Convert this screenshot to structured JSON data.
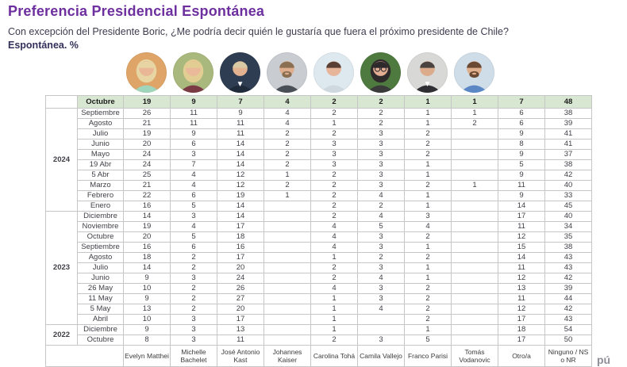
{
  "watermark": "pú",
  "colors": {
    "title_purple": "#6d2f9e",
    "subtitle_bold": "#33305a",
    "header_green": "#d8e7d1",
    "table_border": "#c6c6c6"
  },
  "chart_data": {
    "type": "table",
    "title": "Preferencia Presidencial Espontánea",
    "question": "Con excepción del Presidente Boric, ¿Me podría decir quién le gustaría que fuera el próximo presidente de Chile?",
    "unit_label": "Espontánea. %",
    "columns": [
      "Evelyn Matthei",
      "Michelle Bachelet",
      "José Antonio Kast",
      "Johannes Kaiser",
      "Carolina Tohá",
      "Camila Vallejo",
      "Franco Parisi",
      "Tomás Vodanovic",
      "Otro/a",
      "Ninguno / NS o NR"
    ],
    "header": {
      "label": "Octubre",
      "values": [
        "19",
        "9",
        "7",
        "4",
        "2",
        "2",
        "1",
        "1",
        "7",
        "48"
      ]
    },
    "groups": [
      {
        "year": "2024",
        "rows": [
          {
            "month": "Septiembre",
            "values": [
              "26",
              "11",
              "9",
              "4",
              "2",
              "2",
              "1",
              "1",
              "6",
              "38"
            ]
          },
          {
            "month": "Agosto",
            "values": [
              "21",
              "11",
              "11",
              "4",
              "1",
              "2",
              "1",
              "2",
              "6",
              "39"
            ]
          },
          {
            "month": "Julio",
            "values": [
              "19",
              "9",
              "11",
              "2",
              "2",
              "3",
              "2",
              "",
              "9",
              "41"
            ]
          },
          {
            "month": "Junio",
            "values": [
              "20",
              "6",
              "14",
              "2",
              "3",
              "3",
              "2",
              "",
              "8",
              "41"
            ]
          },
          {
            "month": "Mayo",
            "values": [
              "24",
              "3",
              "14",
              "2",
              "3",
              "3",
              "2",
              "",
              "9",
              "37"
            ]
          },
          {
            "month": "19 Abr",
            "values": [
              "24",
              "7",
              "14",
              "2",
              "3",
              "3",
              "1",
              "",
              "5",
              "38"
            ]
          },
          {
            "month": "5 Abr",
            "values": [
              "25",
              "4",
              "12",
              "1",
              "2",
              "3",
              "1",
              "",
              "9",
              "42"
            ]
          },
          {
            "month": "Marzo",
            "values": [
              "21",
              "4",
              "12",
              "2",
              "2",
              "3",
              "2",
              "1",
              "11",
              "40"
            ]
          },
          {
            "month": "Febrero",
            "values": [
              "22",
              "6",
              "19",
              "1",
              "2",
              "4",
              "1",
              "",
              "9",
              "33"
            ]
          },
          {
            "month": "Enero",
            "values": [
              "16",
              "5",
              "14",
              "",
              "2",
              "2",
              "1",
              "",
              "14",
              "45"
            ]
          }
        ]
      },
      {
        "year": "2023",
        "rows": [
          {
            "month": "Diciembre",
            "values": [
              "14",
              "3",
              "14",
              "",
              "2",
              "4",
              "3",
              "",
              "17",
              "40"
            ]
          },
          {
            "month": "Noviembre",
            "values": [
              "19",
              "4",
              "17",
              "",
              "4",
              "5",
              "4",
              "",
              "11",
              "34"
            ]
          },
          {
            "month": "Octubre",
            "values": [
              "20",
              "5",
              "18",
              "",
              "4",
              "3",
              "2",
              "",
              "12",
              "35"
            ]
          },
          {
            "month": "Septiembre",
            "values": [
              "16",
              "6",
              "16",
              "",
              "4",
              "3",
              "1",
              "",
              "15",
              "38"
            ]
          },
          {
            "month": "Agosto",
            "values": [
              "18",
              "2",
              "17",
              "",
              "1",
              "2",
              "2",
              "",
              "14",
              "43"
            ]
          },
          {
            "month": "Julio",
            "values": [
              "14",
              "2",
              "20",
              "",
              "2",
              "3",
              "1",
              "",
              "11",
              "43"
            ]
          },
          {
            "month": "Junio",
            "values": [
              "9",
              "3",
              "24",
              "",
              "2",
              "4",
              "1",
              "",
              "12",
              "42"
            ]
          },
          {
            "month": "26 May",
            "values": [
              "10",
              "2",
              "26",
              "",
              "4",
              "3",
              "2",
              "",
              "13",
              "39"
            ]
          },
          {
            "month": "11 May",
            "values": [
              "9",
              "2",
              "27",
              "",
              "1",
              "3",
              "2",
              "",
              "11",
              "44"
            ]
          },
          {
            "month": "5 May",
            "values": [
              "13",
              "2",
              "20",
              "",
              "1",
              "4",
              "2",
              "",
              "12",
              "42"
            ]
          },
          {
            "month": "Abril",
            "values": [
              "10",
              "3",
              "17",
              "",
              "1",
              "",
              "2",
              "",
              "17",
              "43"
            ]
          }
        ]
      },
      {
        "year": "2022",
        "rows": [
          {
            "month": "Diciembre",
            "values": [
              "9",
              "3",
              "13",
              "",
              "1",
              "",
              "1",
              "",
              "18",
              "54"
            ]
          },
          {
            "month": "Octubre",
            "values": [
              "8",
              "3",
              "11",
              "",
              "2",
              "3",
              "5",
              "",
              "17",
              "50"
            ]
          }
        ]
      }
    ]
  },
  "avatars": [
    {
      "bg": "#dfa568",
      "hair": "#e7d6a4",
      "skin": "#e9b796",
      "shirt": "#9fd4bd",
      "long_hair": true,
      "beard": false,
      "glasses": false,
      "collar": false
    },
    {
      "bg": "#a9b87c",
      "hair": "#e2cd92",
      "skin": "#eab99a",
      "shirt": "#7a3b45",
      "long_hair": true,
      "beard": false,
      "glasses": false,
      "collar": false
    },
    {
      "bg": "#2e3d52",
      "hair": "#d8c9a4",
      "skin": "#e3b290",
      "shirt": "#1f2a3a",
      "long_hair": false,
      "beard": false,
      "glasses": false,
      "collar": true
    },
    {
      "bg": "#c9ccd1",
      "hair": "#8a6f52",
      "skin": "#dfae8e",
      "shirt": "#4a4f57",
      "long_hair": false,
      "beard": true,
      "glasses": false,
      "collar": false
    },
    {
      "bg": "#dde8ef",
      "hair": "#5a3f35",
      "skin": "#e6b59a",
      "shirt": "#cfd8de",
      "long_hair": false,
      "beard": false,
      "glasses": false,
      "collar": false
    },
    {
      "bg": "#4e7a3f",
      "hair": "#2e2a2c",
      "skin": "#e2ad92",
      "shirt": "#3a3a3a",
      "long_hair": true,
      "beard": false,
      "glasses": true,
      "collar": false
    },
    {
      "bg": "#d8d8d6",
      "hair": "#4a4340",
      "skin": "#dcab8c",
      "shirt": "#2e2e33",
      "long_hair": false,
      "beard": false,
      "glasses": false,
      "collar": true
    },
    {
      "bg": "#cfdde8",
      "hair": "#6b4a33",
      "skin": "#dfae8c",
      "shirt": "#5b87c5",
      "long_hair": false,
      "beard": true,
      "glasses": false,
      "collar": false
    }
  ]
}
